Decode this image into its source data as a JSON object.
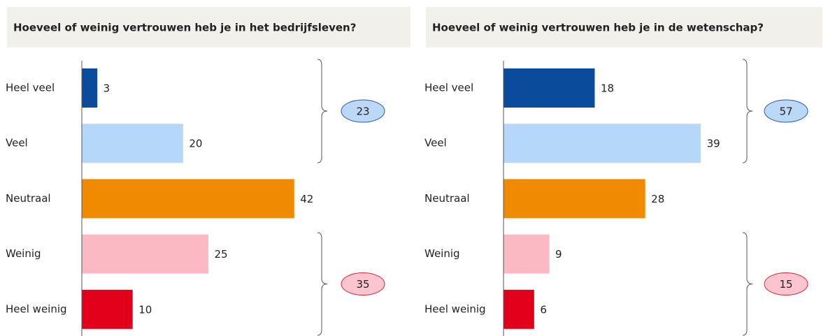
{
  "chart_data": [
    {
      "type": "bar",
      "orientation": "horizontal",
      "title": "Hoeveel of weinig vertrouwen heb je in het bedrijfsleven?",
      "categories": [
        "Heel veel",
        "Veel",
        "Neutraal",
        "Weinig",
        "Heel weinig"
      ],
      "values": [
        3,
        20,
        42,
        25,
        10
      ],
      "colors": [
        "#0a4b9c",
        "#b5d7fa",
        "#f08a00",
        "#fbb9c3",
        "#e2001a"
      ],
      "groups": [
        {
          "total": 23,
          "color": "#bcd8f7",
          "stroke": "#2b5ca6"
        },
        {
          "total": 35,
          "color": "#fbc5cd",
          "stroke": "#d8283c"
        }
      ]
    },
    {
      "type": "bar",
      "orientation": "horizontal",
      "title": "Hoeveel of weinig vertrouwen heb je in de wetenschap?",
      "categories": [
        "Heel veel",
        "Veel",
        "Neutraal",
        "Weinig",
        "Heel weinig"
      ],
      "values": [
        18,
        39,
        28,
        9,
        6
      ],
      "colors": [
        "#0a4b9c",
        "#b5d7fa",
        "#f08a00",
        "#fbb9c3",
        "#e2001a"
      ],
      "groups": [
        {
          "total": 57,
          "color": "#bcd8f7",
          "stroke": "#2b5ca6"
        },
        {
          "total": 15,
          "color": "#fbc5cd",
          "stroke": "#d8283c"
        }
      ]
    }
  ]
}
